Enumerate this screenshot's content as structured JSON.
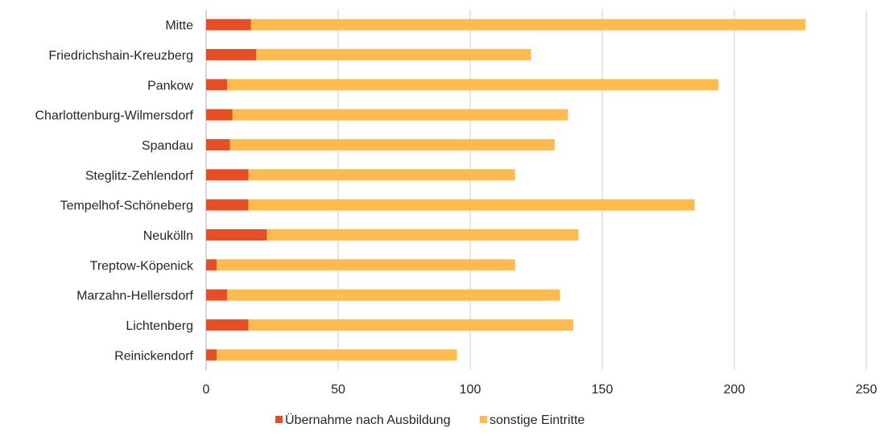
{
  "chart_data": {
    "type": "bar",
    "orientation": "horizontal",
    "stacked": true,
    "categories": [
      "Mitte",
      "Friedrichshain-Kreuzberg",
      "Pankow",
      "Charlottenburg-Wilmersdorf",
      "Spandau",
      "Steglitz-Zehlendorf",
      "Tempelhof-Schöneberg",
      "Neukölln",
      "Treptow-Köpenick",
      "Marzahn-Hellersdorf",
      "Lichtenberg",
      "Reinickendorf"
    ],
    "series": [
      {
        "name": "Übernahme nach Ausbildung",
        "color": "#E84E26",
        "values": [
          17,
          19,
          8,
          10,
          9,
          16,
          16,
          23,
          4,
          8,
          16,
          4
        ]
      },
      {
        "name": "sonstige Eintritte",
        "color": "#FFBB4D",
        "values": [
          210,
          104,
          186,
          127,
          123,
          101,
          169,
          118,
          113,
          126,
          123,
          91
        ]
      }
    ],
    "xlim": [
      0,
      250
    ],
    "xticks": [
      "0",
      "50",
      "100",
      "150",
      "200",
      "250"
    ],
    "grid": "vertical",
    "legend_position": "bottom"
  }
}
